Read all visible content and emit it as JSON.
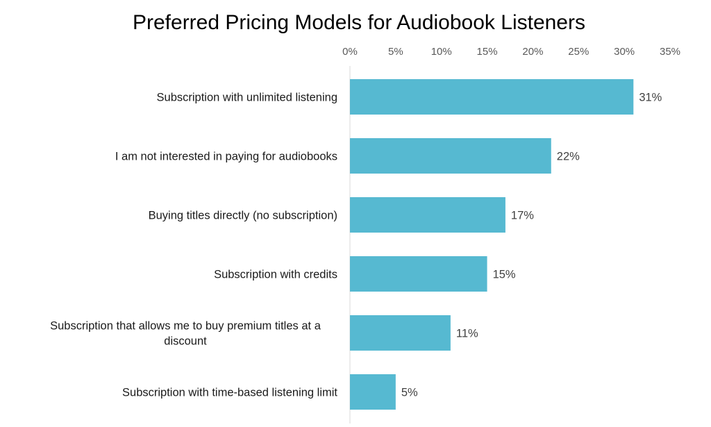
{
  "chart_data": {
    "type": "bar",
    "orientation": "horizontal",
    "title": "Preferred Pricing Models for Audiobook Listeners",
    "xlim": [
      0,
      35
    ],
    "x_ticks": [
      0,
      5,
      10,
      15,
      20,
      25,
      30,
      35
    ],
    "tick_labels": [
      "0%",
      "5%",
      "10%",
      "15%",
      "20%",
      "25%",
      "30%",
      "35%"
    ],
    "x_axis_position": "top",
    "grid": false,
    "legend": "none",
    "bar_color": "#56b9d1",
    "categories": [
      [
        "Subscription with unlimited listening"
      ],
      [
        "I am not interested in paying for audiobooks"
      ],
      [
        "Buying titles directly (no subscription)"
      ],
      [
        "Subscription with credits"
      ],
      [
        "Subscription that allows me to buy premium titles at a",
        "discount"
      ],
      [
        "Subscription with time-based listening limit"
      ]
    ],
    "values": [
      31,
      22,
      17,
      15,
      11,
      5
    ],
    "data_labels": [
      "31%",
      "22%",
      "17%",
      "15%",
      "11%",
      "5%"
    ]
  }
}
